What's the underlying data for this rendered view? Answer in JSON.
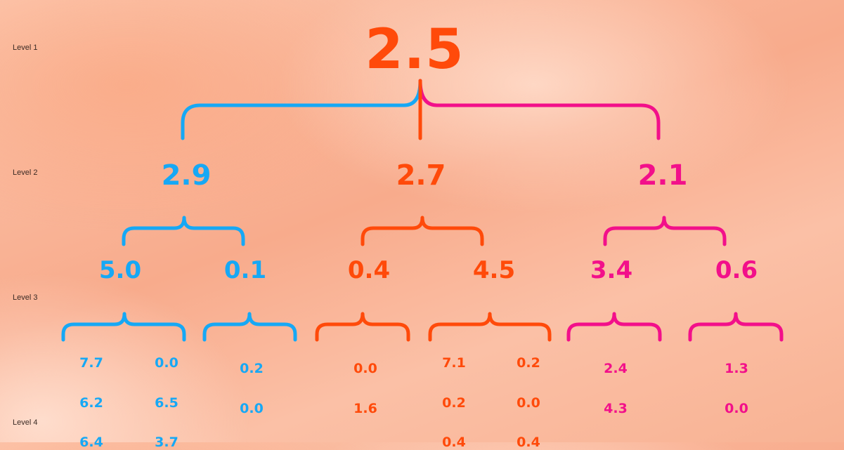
{
  "colors": {
    "blue": "#16a8f5",
    "orange": "#ff4a0a",
    "pink": "#f2108a"
  },
  "level_labels": [
    "Level 1",
    "Level 2",
    "Level 3",
    "Level 4"
  ],
  "root": {
    "value": "2.5",
    "color": "orange"
  },
  "level2": [
    {
      "value": "2.9",
      "color": "blue"
    },
    {
      "value": "2.7",
      "color": "orange"
    },
    {
      "value": "2.1",
      "color": "pink"
    }
  ],
  "level3": [
    {
      "value": "5.0",
      "color": "blue"
    },
    {
      "value": "0.1",
      "color": "blue"
    },
    {
      "value": "0.4",
      "color": "orange"
    },
    {
      "value": "4.5",
      "color": "orange"
    },
    {
      "value": "3.4",
      "color": "pink"
    },
    {
      "value": "0.6",
      "color": "pink"
    }
  ],
  "level4": [
    {
      "value": "7.7",
      "color": "blue"
    },
    {
      "value": "0.0",
      "color": "blue"
    },
    {
      "value": "6.2",
      "color": "blue"
    },
    {
      "value": "6.5",
      "color": "blue"
    },
    {
      "value": "6.4",
      "color": "blue"
    },
    {
      "value": "3.7",
      "color": "blue"
    },
    {
      "value": "0.2",
      "color": "blue"
    },
    {
      "value": "0.0",
      "color": "blue"
    },
    {
      "value": "0.0",
      "color": "orange"
    },
    {
      "value": "1.6",
      "color": "orange"
    },
    {
      "value": "7.1",
      "color": "orange"
    },
    {
      "value": "0.2",
      "color": "orange"
    },
    {
      "value": "0.2",
      "color": "orange"
    },
    {
      "value": "0.0",
      "color": "orange"
    },
    {
      "value": "0.4",
      "color": "orange"
    },
    {
      "value": "0.4",
      "color": "orange"
    },
    {
      "value": "2.4",
      "color": "pink"
    },
    {
      "value": "4.3",
      "color": "pink"
    },
    {
      "value": "1.3",
      "color": "pink"
    },
    {
      "value": "0.0",
      "color": "pink"
    }
  ]
}
